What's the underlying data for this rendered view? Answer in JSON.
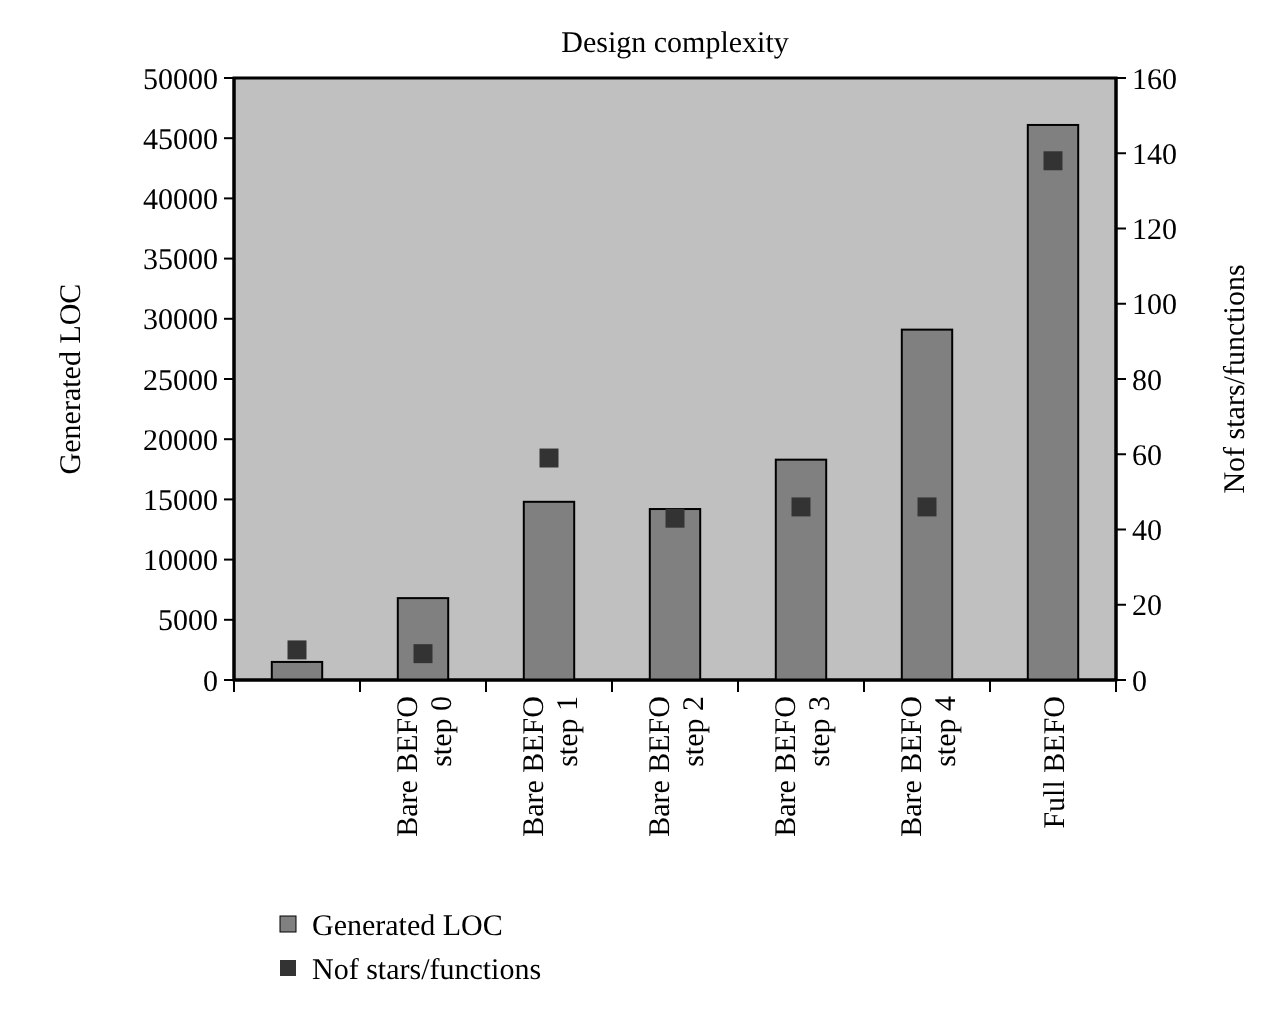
{
  "chart_data": {
    "type": "bar",
    "title": "Design complexity",
    "ylabel": "Generated LOC",
    "y2label": "Nof stars/functions",
    "categories": [
      null,
      "Bare BEFO step 0",
      "Bare BEFO step 1",
      "Bare BEFO step 2",
      "Bare BEFO step 3",
      "Bare BEFO step 4",
      "Full BEFO"
    ],
    "series": [
      {
        "name": "Generated LOC",
        "color": "#808080",
        "values": [
          1500,
          6800,
          14800,
          14200,
          18300,
          29100,
          46100
        ]
      },
      {
        "name": "Nof stars/functions",
        "type": "scatter",
        "axis": "y2",
        "color": "#333333",
        "marker": "square",
        "values": [
          8,
          7,
          59,
          43,
          46,
          46,
          138
        ]
      }
    ],
    "ylim": [
      0,
      50000
    ],
    "yticks": [
      0,
      5000,
      10000,
      15000,
      20000,
      25000,
      30000,
      35000,
      40000,
      45000,
      50000
    ],
    "y2lim": [
      0,
      160
    ],
    "y2ticks": [
      0,
      20,
      40,
      60,
      80,
      100,
      120,
      140,
      160
    ],
    "grid": false,
    "legend": "bottom"
  }
}
